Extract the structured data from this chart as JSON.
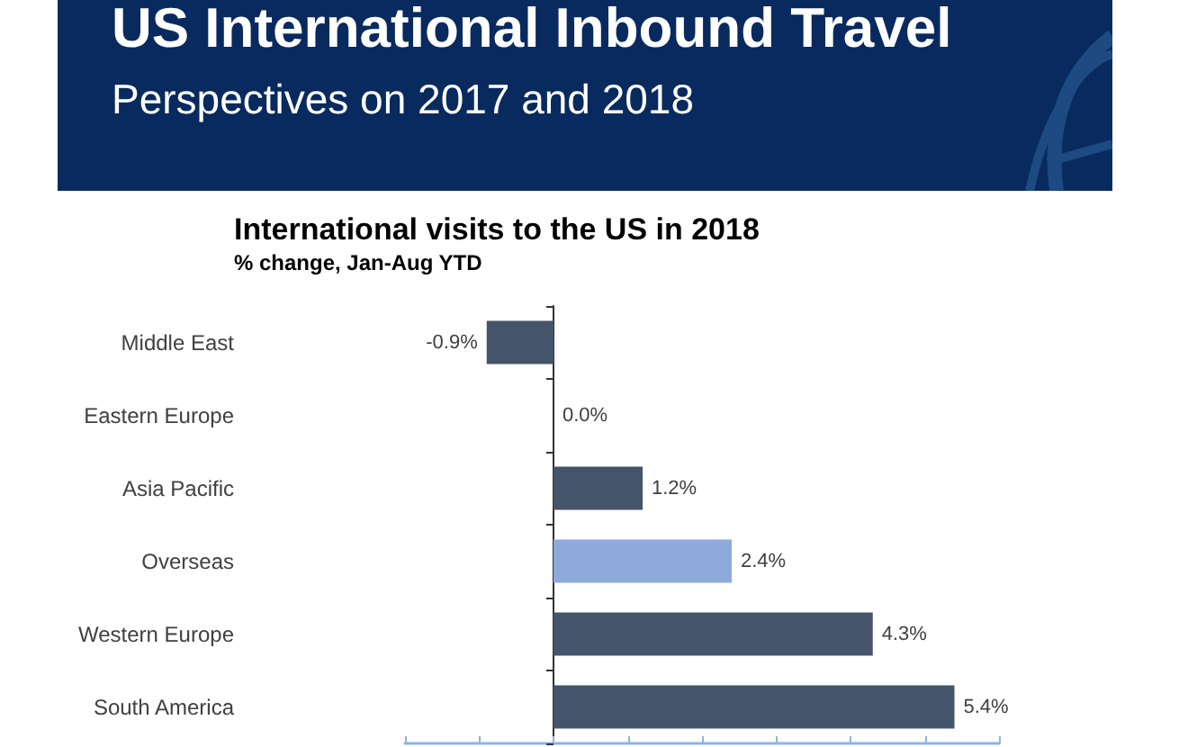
{
  "chart_data": {
    "type": "bar",
    "orientation": "horizontal",
    "title": "International visits to the US in 2018",
    "subtitle": "% change, Jan-Aug YTD",
    "annotations": [
      "US International Inbound Travel",
      "Perspectives on 2017 and 2018"
    ],
    "categories": [
      "Middle East",
      "Eastern Europe",
      "Asia Pacific",
      "Overseas",
      "Western Europe",
      "South America"
    ],
    "values": [
      -0.9,
      0.0,
      1.2,
      2.4,
      4.3,
      5.4
    ],
    "value_labels": [
      "-0.9%",
      "0.0%",
      "1.2%",
      "2.4%",
      "4.3%",
      "5.4%"
    ],
    "colors": [
      "#44546a",
      "#44546a",
      "#44546a",
      "#8eaadb",
      "#44546a",
      "#44546a"
    ],
    "xlim": [
      -2,
      6
    ],
    "xticks": [
      {
        "value": -2,
        "label": null
      },
      {
        "value": -1,
        "label": null
      },
      {
        "value": 0,
        "label": null
      },
      {
        "value": 1,
        "label": null
      },
      {
        "value": 2,
        "label": null
      },
      {
        "value": 3,
        "label": null
      },
      {
        "value": 4,
        "label": null
      },
      {
        "value": 5,
        "label": null
      },
      {
        "value": 6,
        "label": null
      }
    ],
    "tick_labels": "y",
    "grid": false
  }
}
